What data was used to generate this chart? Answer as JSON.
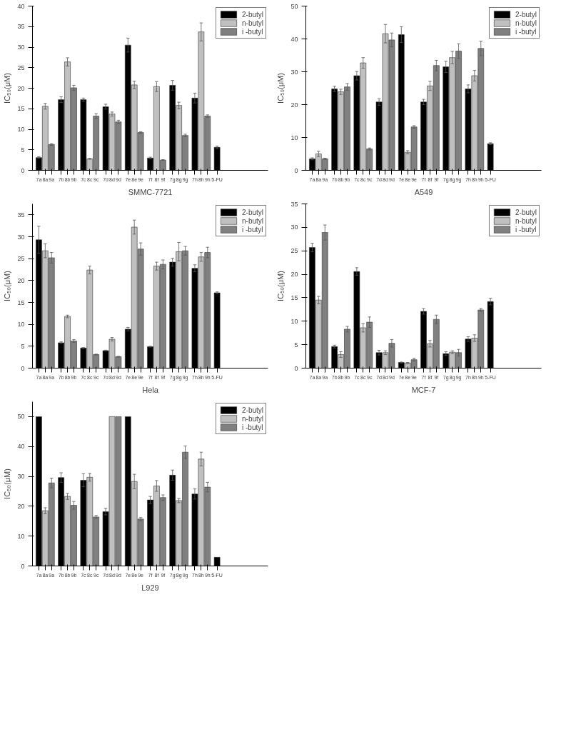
{
  "chart_data": [
    {
      "type": "bar",
      "xlabel": "SMMC-7721",
      "ylabel": "IC₅₀(μM)",
      "legend": "top right",
      "grid": false,
      "ylim": [
        0,
        40
      ],
      "yticks": [
        0,
        5,
        10,
        15,
        20,
        25,
        30,
        35,
        40
      ],
      "categories": [
        "7a",
        "8a",
        "9a",
        "7b",
        "8b",
        "9b",
        "7c",
        "8c",
        "9c",
        "7d",
        "8d",
        "9d",
        "7e",
        "8e",
        "9e",
        "7f",
        "8f",
        "9f",
        "7g",
        "8g",
        "9g",
        "7h",
        "8h",
        "9h",
        "5-FU"
      ],
      "series": [
        {
          "name": "2-butyl",
          "color": "#000000",
          "values": [
            3.1,
            null,
            null,
            17.2,
            null,
            null,
            17.2,
            null,
            null,
            15.5,
            null,
            null,
            30.5,
            null,
            null,
            3.0,
            null,
            null,
            20.7,
            null,
            null,
            17.6,
            null,
            null,
            5.6
          ],
          "errors": [
            0.2,
            null,
            null,
            0.7,
            null,
            null,
            0.4,
            null,
            null,
            0.6,
            null,
            null,
            1.7,
            null,
            null,
            0.2,
            null,
            null,
            1.2,
            null,
            null,
            1.2,
            null,
            null,
            0.3
          ]
        },
        {
          "name": "n-butyl",
          "color": "#c0c0c0",
          "values": [
            null,
            15.6,
            null,
            null,
            26.4,
            null,
            null,
            2.8,
            null,
            null,
            13.7,
            null,
            null,
            20.8,
            null,
            null,
            20.4,
            null,
            null,
            15.8,
            null,
            null,
            33.7,
            null,
            null
          ],
          "errors": [
            null,
            0.7,
            null,
            null,
            1.0,
            null,
            null,
            0.1,
            null,
            null,
            0.5,
            null,
            null,
            0.9,
            null,
            null,
            1.2,
            null,
            null,
            0.8,
            null,
            null,
            2.2,
            null,
            null
          ]
        },
        {
          "name": "i -butyl",
          "color": "#808080",
          "values": [
            null,
            null,
            6.3,
            null,
            null,
            20.1,
            null,
            null,
            13.2,
            null,
            null,
            11.8,
            null,
            null,
            9.2,
            null,
            null,
            2.5,
            null,
            null,
            8.5,
            null,
            null,
            13.2,
            null
          ],
          "errors": [
            null,
            null,
            0.2,
            null,
            null,
            0.6,
            null,
            null,
            0.6,
            null,
            null,
            0.4,
            null,
            null,
            0.2,
            null,
            null,
            0.1,
            null,
            null,
            0.3,
            null,
            null,
            0.3,
            null
          ]
        }
      ]
    },
    {
      "type": "bar",
      "xlabel": "A549",
      "ylabel": "IC₅₀(μM)",
      "legend": "top right",
      "grid": false,
      "ylim": [
        0,
        50
      ],
      "yticks": [
        0,
        10,
        20,
        30,
        40,
        50
      ],
      "categories": [
        "7a",
        "8a",
        "9a",
        "7b",
        "8b",
        "9b",
        "7c",
        "8c",
        "9c",
        "7d",
        "8d",
        "9d",
        "7e",
        "8e",
        "9e",
        "7f",
        "8f",
        "9f",
        "7g",
        "8g",
        "9g",
        "7h",
        "8h",
        "9h",
        "5-FU"
      ],
      "series": [
        {
          "name": "2-butyl",
          "color": "#000000",
          "values": [
            3.5,
            null,
            null,
            24.8,
            null,
            null,
            28.8,
            null,
            null,
            20.8,
            null,
            null,
            41.3,
            null,
            null,
            20.8,
            null,
            null,
            31.5,
            null,
            null,
            24.8,
            null,
            null,
            8.1
          ],
          "errors": [
            0.3,
            null,
            null,
            0.8,
            null,
            null,
            1.3,
            null,
            null,
            1.0,
            null,
            null,
            2.4,
            null,
            null,
            0.8,
            null,
            null,
            1.7,
            null,
            null,
            1.2,
            null,
            null,
            0.3
          ]
        },
        {
          "name": "n-butyl",
          "color": "#c0c0c0",
          "values": [
            null,
            5.0,
            null,
            null,
            23.9,
            null,
            null,
            32.7,
            null,
            null,
            41.6,
            null,
            null,
            5.5,
            null,
            null,
            25.7,
            null,
            null,
            34.3,
            null,
            null,
            28.8,
            null,
            null
          ],
          "errors": [
            null,
            0.8,
            null,
            null,
            0.8,
            null,
            null,
            1.6,
            null,
            null,
            2.8,
            null,
            null,
            0.5,
            null,
            null,
            1.4,
            null,
            null,
            1.9,
            null,
            null,
            1.6,
            null,
            null
          ]
        },
        {
          "name": "i -butyl",
          "color": "#808080",
          "values": [
            null,
            null,
            3.5,
            null,
            null,
            25.4,
            null,
            null,
            6.5,
            null,
            null,
            39.7,
            null,
            null,
            13.2,
            null,
            null,
            31.9,
            null,
            null,
            36.3,
            null,
            null,
            37.1,
            null
          ],
          "errors": [
            null,
            null,
            0.2,
            null,
            null,
            1.0,
            null,
            null,
            0.3,
            null,
            null,
            2.1,
            null,
            null,
            0.4,
            null,
            null,
            1.6,
            null,
            null,
            2.2,
            null,
            null,
            2.2,
            null
          ]
        }
      ]
    },
    {
      "type": "bar",
      "xlabel": "Hela",
      "ylabel": "IC₅₀(μM)",
      "legend": "top right",
      "grid": false,
      "ylim": [
        0,
        37.5
      ],
      "yticks": [
        0,
        5,
        10,
        15,
        20,
        25,
        30,
        35
      ],
      "categories": [
        "7a",
        "8a",
        "9a",
        "7b",
        "8b",
        "9b",
        "7c",
        "8c",
        "9c",
        "7d",
        "8d",
        "9d",
        "7e",
        "8e",
        "9e",
        "7f",
        "8f",
        "9f",
        "7g",
        "8g",
        "9g",
        "7h",
        "8h",
        "9h",
        "5-FU"
      ],
      "series": [
        {
          "name": "2-butyl",
          "color": "#000000",
          "values": [
            29.3,
            null,
            null,
            5.8,
            null,
            null,
            4.6,
            null,
            null,
            4.0,
            null,
            null,
            8.9,
            null,
            null,
            4.9,
            null,
            null,
            24.2,
            null,
            null,
            22.8,
            null,
            null,
            17.2
          ],
          "errors": [
            3.1,
            null,
            null,
            0.2,
            null,
            null,
            0.1,
            null,
            null,
            0.1,
            null,
            null,
            0.4,
            null,
            null,
            0.1,
            null,
            null,
            0.9,
            null,
            null,
            0.8,
            null,
            null,
            0.2
          ]
        },
        {
          "name": "n-butyl",
          "color": "#c0c0c0",
          "values": [
            null,
            26.8,
            null,
            null,
            11.8,
            null,
            null,
            22.4,
            null,
            null,
            6.6,
            null,
            null,
            32.2,
            null,
            null,
            23.3,
            null,
            null,
            26.6,
            null,
            null,
            25.4,
            null,
            null
          ],
          "errors": [
            null,
            1.6,
            null,
            null,
            0.3,
            null,
            null,
            0.9,
            null,
            null,
            0.4,
            null,
            null,
            1.6,
            null,
            null,
            0.9,
            null,
            null,
            2.1,
            null,
            null,
            1.0,
            null,
            null
          ]
        },
        {
          "name": "i -butyl",
          "color": "#808080",
          "values": [
            null,
            null,
            25.2,
            null,
            null,
            6.2,
            null,
            null,
            3.1,
            null,
            null,
            2.6,
            null,
            null,
            27.2,
            null,
            null,
            23.7,
            null,
            null,
            26.8,
            null,
            null,
            26.4,
            null
          ],
          "errors": [
            null,
            null,
            1.2,
            null,
            null,
            0.3,
            null,
            null,
            0.1,
            null,
            null,
            0.1,
            null,
            null,
            1.4,
            null,
            null,
            1.0,
            null,
            null,
            1.0,
            null,
            null,
            1.2,
            null
          ]
        }
      ]
    },
    {
      "type": "bar",
      "xlabel": "MCF-7",
      "ylabel": "IC₅₀(μM)",
      "legend": "top right",
      "grid": false,
      "ylim": [
        0,
        35
      ],
      "yticks": [
        0,
        5,
        10,
        15,
        20,
        25,
        30,
        35
      ],
      "categories": [
        "7a",
        "8a",
        "9a",
        "7b",
        "8b",
        "9b",
        "7c",
        "8c",
        "9c",
        "7d",
        "8d",
        "9d",
        "7e",
        "8e",
        "9e",
        "7f",
        "8f",
        "9f",
        "7g",
        "8g",
        "9g",
        "7h",
        "8h",
        "9h",
        "5-FU"
      ],
      "series": [
        {
          "name": "2-butyl",
          "color": "#000000",
          "values": [
            25.7,
            null,
            null,
            4.6,
            null,
            null,
            20.6,
            null,
            null,
            3.3,
            null,
            null,
            1.2,
            null,
            null,
            12.1,
            null,
            null,
            3.1,
            null,
            null,
            6.2,
            null,
            null,
            14.2
          ],
          "errors": [
            0.9,
            null,
            null,
            0.3,
            null,
            null,
            0.8,
            null,
            null,
            0.5,
            null,
            null,
            0.1,
            null,
            null,
            0.6,
            null,
            null,
            0.4,
            null,
            null,
            0.5,
            null,
            null,
            0.7
          ]
        },
        {
          "name": "n-butyl",
          "color": "#c0c0c0",
          "values": [
            null,
            14.5,
            null,
            null,
            2.9,
            null,
            null,
            8.6,
            null,
            null,
            3.3,
            null,
            null,
            1.1,
            null,
            null,
            5.2,
            null,
            null,
            3.4,
            null,
            null,
            6.4,
            null,
            null
          ],
          "errors": [
            null,
            0.8,
            null,
            null,
            0.6,
            null,
            null,
            0.9,
            null,
            null,
            0.4,
            null,
            null,
            0.1,
            null,
            null,
            0.7,
            null,
            null,
            0.3,
            null,
            null,
            0.7,
            null,
            null
          ]
        },
        {
          "name": "i -butyl",
          "color": "#808080",
          "values": [
            null,
            null,
            28.9,
            null,
            null,
            8.3,
            null,
            null,
            9.8,
            null,
            null,
            5.3,
            null,
            null,
            1.8,
            null,
            null,
            10.4,
            null,
            null,
            3.3,
            null,
            null,
            12.4,
            null
          ],
          "errors": [
            null,
            null,
            1.6,
            null,
            null,
            0.6,
            null,
            null,
            1.1,
            null,
            null,
            0.8,
            null,
            null,
            0.3,
            null,
            null,
            0.9,
            null,
            null,
            0.7,
            null,
            null,
            0.3,
            null
          ]
        }
      ]
    },
    {
      "type": "bar",
      "xlabel": "L929",
      "ylabel": "IC₅₀(μM)",
      "legend": "top right",
      "grid": false,
      "ylim": [
        0,
        55
      ],
      "yticks": [
        0,
        10,
        20,
        30,
        40,
        50
      ],
      "categories": [
        "7a",
        "8a",
        "9a",
        "7b",
        "8b",
        "9b",
        "7c",
        "8c",
        "9c",
        "7d",
        "8d",
        "9d",
        "7e",
        "8e",
        "9e",
        "7f",
        "8f",
        "9f",
        "7g",
        "8g",
        "9g",
        "7h",
        "8h",
        "9h",
        "5-FU"
      ],
      "series": [
        {
          "name": "2-butyl",
          "color": "#000000",
          "values": [
            50,
            null,
            null,
            29.6,
            null,
            null,
            28.7,
            null,
            null,
            18.2,
            null,
            null,
            50,
            null,
            null,
            22.1,
            null,
            null,
            30.4,
            null,
            null,
            24.1,
            null,
            null,
            2.9
          ],
          "errors": [
            null,
            null,
            null,
            1.6,
            null,
            null,
            2.2,
            null,
            null,
            1.1,
            null,
            null,
            null,
            null,
            null,
            1.2,
            null,
            null,
            1.7,
            null,
            null,
            1.7,
            null,
            null,
            null
          ]
        },
        {
          "name": "n-butyl",
          "color": "#c0c0c0",
          "values": [
            null,
            18.5,
            null,
            null,
            23.3,
            null,
            null,
            29.7,
            null,
            null,
            50,
            null,
            null,
            28.3,
            null,
            null,
            26.8,
            null,
            null,
            21.9,
            null,
            null,
            35.8,
            null,
            null
          ],
          "errors": [
            null,
            1.0,
            null,
            null,
            1.0,
            null,
            null,
            1.3,
            null,
            null,
            null,
            null,
            null,
            2.4,
            null,
            null,
            1.8,
            null,
            null,
            0.7,
            null,
            null,
            2.3,
            null,
            null
          ]
        },
        {
          "name": "i -butyl",
          "color": "#808080",
          "values": [
            null,
            null,
            27.8,
            null,
            null,
            20.3,
            null,
            null,
            16.4,
            null,
            null,
            50,
            null,
            null,
            15.7,
            null,
            null,
            22.9,
            null,
            null,
            38.1,
            null,
            null,
            26.4,
            null
          ],
          "errors": [
            null,
            null,
            1.6,
            null,
            null,
            1.3,
            null,
            null,
            0.5,
            null,
            null,
            null,
            null,
            null,
            0.5,
            null,
            null,
            0.9,
            null,
            null,
            2.1,
            null,
            null,
            1.6,
            null
          ]
        }
      ]
    }
  ]
}
